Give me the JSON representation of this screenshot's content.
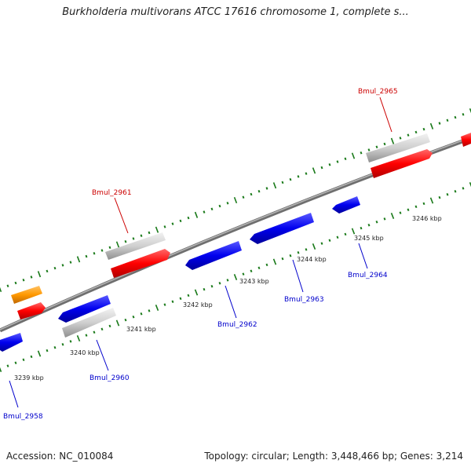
{
  "title": "Burkholderia multivorans ATCC 17616 chromosome 1, complete s...",
  "footer": {
    "accession": "Accession: NC_010084",
    "info": "Topology: circular; Length: 3,448,466 bp; Genes: 3,214"
  },
  "colors": {
    "backbone": "#7a7a7a",
    "ticks": "#1a7a1a",
    "forward_gene": "#ff0000",
    "reverse_gene": "#0000ff",
    "gene_product_gray": "#c8c8c8",
    "orange_gene": "#ff9900",
    "label_red": "#cc0000",
    "label_blue": "#0000cc"
  },
  "kbp_labels": [
    "3239 kbp",
    "3240 kbp",
    "3241 kbp",
    "3242 kbp",
    "3243 kbp",
    "3244 kbp",
    "3245 kbp",
    "3246 kbp"
  ],
  "gene_labels": {
    "bmul_2958": "Bmul_2958",
    "bmul_2960": "Bmul_2960",
    "bmul_2961": "Bmul_2961",
    "bmul_2962": "Bmul_2962",
    "bmul_2963": "Bmul_2963",
    "bmul_2964": "Bmul_2964",
    "bmul_2965": "Bmul_2965"
  }
}
